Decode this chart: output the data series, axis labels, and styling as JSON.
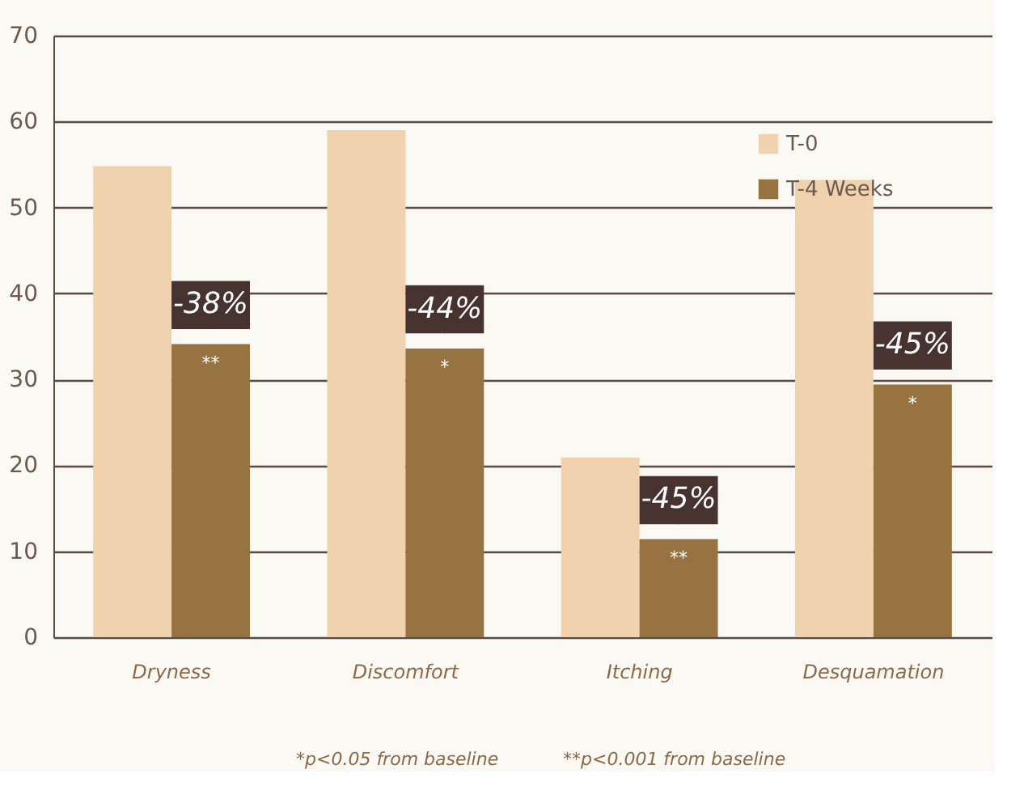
{
  "chart_data": {
    "type": "bar",
    "categories": [
      "Dryness",
      "Discomfort",
      "Itching",
      "Desquamation"
    ],
    "series": [
      {
        "name": "T-0",
        "color": "#f0d2ae",
        "values": [
          54.8,
          59.0,
          20.9,
          53.2
        ]
      },
      {
        "name": "T-4 Weeks",
        "color": "#987342",
        "values": [
          34.1,
          33.6,
          11.4,
          29.4
        ]
      }
    ],
    "ylim": [
      0,
      70
    ],
    "yticks": [
      0,
      10,
      20,
      30,
      40,
      50,
      60,
      70
    ],
    "grid": "y",
    "legend": "top right",
    "annotations": [
      {
        "text": "-38%",
        "x": "Dryness",
        "y": 34.1
      },
      {
        "text": "**",
        "x": "Dryness",
        "y": 34.1
      },
      {
        "text": "-44%",
        "x": "Discomfort",
        "y": 33.6
      },
      {
        "text": "*",
        "x": "Discomfort",
        "y": 33.6
      },
      {
        "text": "-45%",
        "x": "Itching",
        "y": 11.4
      },
      {
        "text": "**",
        "x": "Itching",
        "y": 11.4
      },
      {
        "text": "-45%",
        "x": "Desquamation",
        "y": 29.4
      },
      {
        "text": "*",
        "x": "Desquamation",
        "y": 29.4
      },
      "*p<0.05 from baseline",
      "**p<0.001 from baseline"
    ]
  }
}
